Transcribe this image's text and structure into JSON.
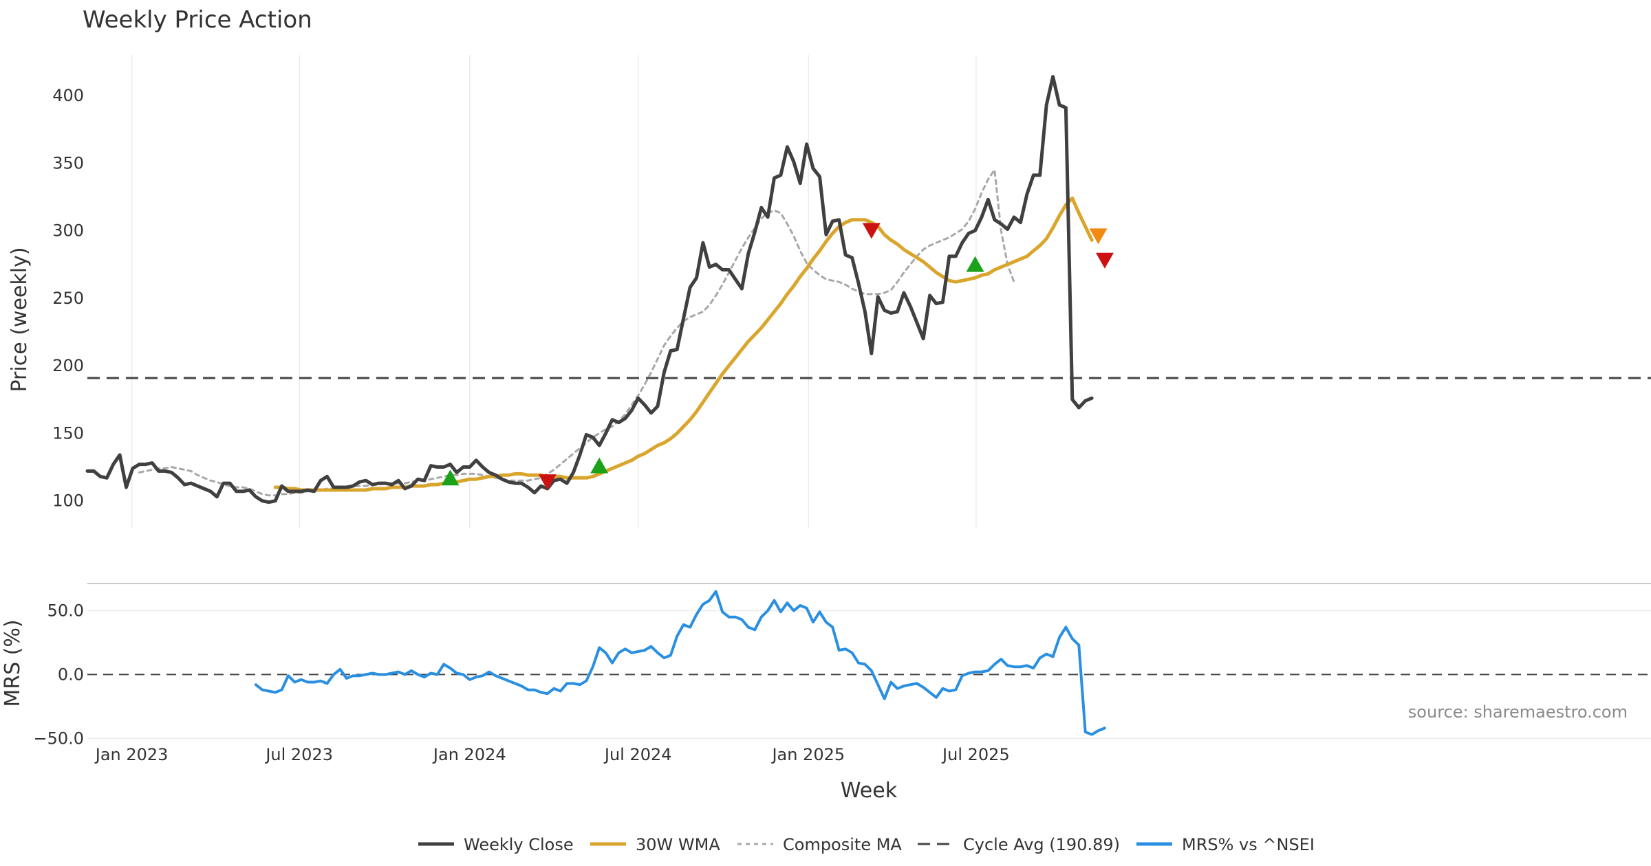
{
  "chart_data": {
    "type": "line",
    "title": "Weekly Price Action",
    "x_axis": {
      "label": "Week",
      "start_date": "2022-11-14",
      "tick_labels": [
        "Jan 2023",
        "Jul 2023",
        "Jan 2024",
        "Jul 2024",
        "Jan 2025",
        "Jul 2025"
      ],
      "tick_dates": [
        "2023-01-01",
        "2023-07-01",
        "2024-01-01",
        "2024-07-01",
        "2025-01-01",
        "2025-07-01"
      ]
    },
    "price_panel": {
      "ylabel": "Price (weekly)",
      "ylim": [
        80,
        430
      ],
      "yticks": [
        100,
        150,
        200,
        250,
        300,
        350,
        400
      ],
      "cycle_avg": 190.89,
      "series": [
        {
          "name": "Weekly Close",
          "color": "#404040",
          "x_start": "2022-11-14",
          "step_days": 7,
          "values": [
            122,
            122,
            118,
            117,
            127,
            134,
            110,
            124,
            127,
            127,
            128,
            122,
            122,
            121,
            117,
            112,
            113,
            111,
            109,
            107,
            103,
            113,
            113,
            107,
            107,
            108,
            103,
            100,
            99,
            100,
            111,
            107,
            107,
            107,
            108,
            107,
            115,
            118,
            110,
            110,
            110,
            111,
            114,
            115,
            112,
            113,
            113,
            112,
            115,
            109,
            111,
            116,
            115,
            126,
            125,
            125,
            127,
            121,
            125,
            125,
            130,
            125,
            121,
            119,
            116,
            114,
            113,
            113,
            110,
            106,
            111,
            109,
            115,
            116,
            113,
            121,
            134,
            149,
            147,
            141,
            150,
            160,
            158,
            161,
            167,
            176,
            171,
            165,
            170,
            195,
            211,
            212,
            235,
            258,
            265,
            291,
            273,
            275,
            271,
            271,
            264,
            257,
            283,
            299,
            317,
            310,
            339,
            341,
            362,
            351,
            335,
            364,
            346,
            340,
            297,
            307,
            308,
            282,
            280,
            261,
            240,
            209,
            251,
            241,
            239,
            240,
            254,
            244,
            232,
            220,
            252,
            246,
            247,
            281,
            281,
            291,
            298,
            300,
            310,
            323,
            308,
            305,
            301,
            310,
            306,
            327,
            341,
            341,
            393,
            414,
            393,
            391,
            175,
            169,
            174,
            176
          ]
        },
        {
          "name": "30W WMA",
          "color": "#d9a52c",
          "x_start": "2023-06-05",
          "step_days": 7,
          "values": [
            110,
            110,
            109,
            109,
            108,
            108,
            108,
            108,
            108,
            108,
            108,
            108,
            108,
            108,
            108,
            109,
            109,
            109,
            110,
            110,
            110,
            111,
            111,
            111,
            112,
            112,
            113,
            114,
            114,
            115,
            116,
            116,
            117,
            118,
            118,
            119,
            119,
            120,
            120,
            119,
            119,
            119,
            118,
            118,
            118,
            117,
            117,
            117,
            117,
            118,
            120,
            122,
            124,
            126,
            128,
            130,
            133,
            135,
            138,
            141,
            143,
            146,
            150,
            155,
            160,
            166,
            173,
            180,
            187,
            194,
            200,
            206,
            212,
            218,
            223,
            228,
            234,
            240,
            246,
            253,
            259,
            266,
            272,
            279,
            285,
            292,
            298,
            303,
            306,
            308,
            308,
            308,
            306,
            303,
            297,
            293,
            290,
            286,
            283,
            280,
            277,
            273,
            269,
            266,
            263,
            262,
            263,
            264,
            265,
            267,
            268,
            271,
            273,
            275,
            277,
            279,
            281,
            285,
            289,
            294,
            302,
            311,
            319,
            324,
            313,
            303,
            293
          ]
        },
        {
          "name": "Composite MA",
          "color": "#a8a8a8",
          "x_start": "2023-01-09",
          "step_days": 7,
          "values": [
            121,
            122,
            123,
            124,
            124,
            125,
            124,
            123,
            122,
            119,
            117,
            115,
            114,
            112,
            111,
            110,
            110,
            109,
            107,
            105,
            104,
            104,
            105,
            105,
            106,
            106,
            107,
            107,
            108,
            109,
            109,
            110,
            110,
            111,
            111,
            111,
            112,
            112,
            113,
            113,
            113,
            113,
            114,
            115,
            115,
            116,
            117,
            118,
            119,
            119,
            120,
            120,
            120,
            119,
            118,
            117,
            116,
            115,
            115,
            115,
            115,
            116,
            117,
            120,
            123,
            127,
            131,
            135,
            139,
            143,
            147,
            150,
            153,
            155,
            159,
            164,
            171,
            178,
            186,
            195,
            205,
            215,
            222,
            228,
            233,
            236,
            238,
            240,
            245,
            252,
            260,
            269,
            278,
            287,
            295,
            302,
            309,
            313,
            315,
            313,
            305,
            296,
            285,
            276,
            271,
            267,
            264,
            263,
            262,
            260,
            257,
            255,
            253,
            253,
            253,
            254,
            256,
            262,
            269,
            275,
            281,
            286,
            289,
            291,
            293,
            295,
            298,
            301,
            307,
            316,
            328,
            338,
            345,
            300,
            275,
            262
          ]
        },
        {
          "name": "Cycle Avg (190.89)",
          "color": "#444444",
          "values": [
            190.89
          ]
        }
      ],
      "signals_buy": [
        {
          "date": "2023-12-11",
          "price": 117
        },
        {
          "date": "2024-05-20",
          "price": 126
        },
        {
          "date": "2025-06-30",
          "price": 275
        }
      ],
      "signals_sell": [
        {
          "date": "2024-03-25",
          "price": 114
        },
        {
          "date": "2025-03-10",
          "price": 300
        },
        {
          "date": "2025-11-17",
          "price": 278
        }
      ],
      "signals_warn": [
        {
          "date": "2025-11-10",
          "price": 296
        }
      ]
    },
    "mrs_panel": {
      "ylabel": "MRS (%)",
      "ylim": [
        -52,
        68
      ],
      "yticks": [
        50,
        0,
        -50
      ],
      "ytick_labels": [
        "50.0",
        "0.0",
        "−50.0"
      ],
      "zero_line": 0,
      "series": [
        {
          "name": "MRS% vs ^NSEI",
          "color": "#2a8fe0",
          "x_start": "2023-05-15",
          "step_days": 7,
          "values": [
            -8,
            -12,
            -13,
            -14,
            -12,
            -1,
            -6,
            -4,
            -6,
            -6,
            -5,
            -7,
            0,
            4,
            -3,
            -1,
            -1,
            0,
            1,
            0,
            0,
            1,
            2,
            0,
            3,
            0,
            -2,
            1,
            0,
            8,
            5,
            1,
            0,
            -4,
            -2,
            -1,
            2,
            -1,
            -3,
            -5,
            -7,
            -9,
            -12,
            -12,
            -14,
            -15,
            -11,
            -13,
            -7,
            -7,
            -8,
            -5,
            6,
            21,
            17,
            9,
            17,
            20,
            17,
            18,
            19,
            22,
            17,
            13,
            15,
            30,
            39,
            37,
            47,
            55,
            58,
            65,
            49,
            45,
            45,
            43,
            37,
            35,
            45,
            50,
            58,
            49,
            56,
            50,
            54,
            52,
            41,
            49,
            41,
            37,
            19,
            20,
            17,
            9,
            8,
            3,
            -8,
            -19,
            -6,
            -11,
            -9,
            -8,
            -7,
            -10,
            -14,
            -18,
            -11,
            -13,
            -12,
            -1,
            1,
            2,
            2,
            3,
            8,
            12,
            7,
            6,
            6,
            7,
            5,
            13,
            16,
            14,
            29,
            37,
            28,
            23,
            -45,
            -47,
            -44,
            -42
          ]
        }
      ]
    },
    "legend": {
      "placement": "bottom-center",
      "entries": [
        "Weekly Close",
        "30W WMA",
        "Composite MA",
        "Cycle Avg (190.89)",
        "MRS% vs ^NSEI"
      ]
    },
    "annotation": "source: sharemaestro.com"
  }
}
